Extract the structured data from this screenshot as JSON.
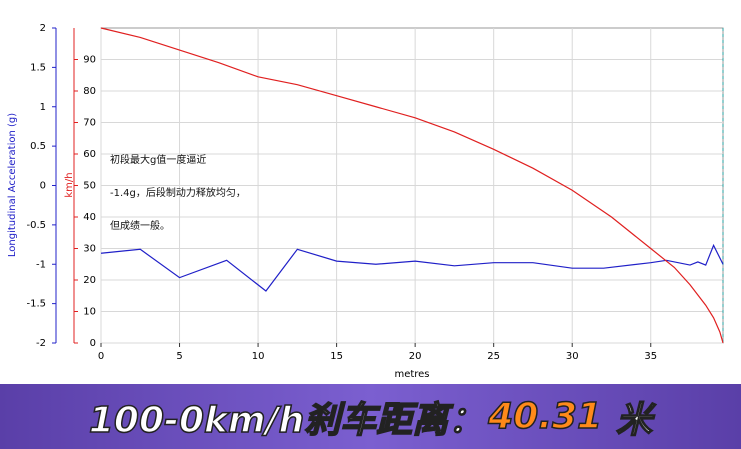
{
  "chart_data": {
    "type": "line",
    "xlabel": "metres",
    "ylabel": "Longitudinal Acceleration (g)",
    "y2label": "km/h",
    "xlim": [
      0,
      39.6
    ],
    "xticks": [
      0,
      5,
      10,
      15,
      20,
      25,
      30,
      35
    ],
    "ylim": [
      -2,
      2
    ],
    "yticks": [
      -2,
      -1.5,
      -1,
      -0.5,
      0,
      0.5,
      1,
      1.5,
      2
    ],
    "y2lim": [
      0,
      100
    ],
    "y2ticks": [
      0,
      10,
      20,
      30,
      40,
      50,
      60,
      70,
      80,
      90
    ],
    "grid": true,
    "series": [
      {
        "color": "#2020c8",
        "axis": "y",
        "x": [
          0,
          2.5,
          5,
          8,
          10.5,
          12.5,
          15,
          17.5,
          20,
          22.5,
          25,
          27.5,
          30,
          32,
          35,
          36,
          37.5,
          38,
          38.5,
          39,
          39.6
        ],
        "values": [
          -0.86,
          -0.81,
          -1.17,
          -0.95,
          -1.34,
          -0.81,
          -0.96,
          -1.0,
          -0.96,
          -1.02,
          -0.98,
          -0.98,
          -1.05,
          -1.05,
          -0.98,
          -0.95,
          -1.01,
          -0.97,
          -1.01,
          -0.76,
          -1.0
        ]
      },
      {
        "color": "#e02020",
        "axis": "y2",
        "x": [
          0,
          2.5,
          5,
          7.5,
          10,
          12.5,
          15,
          17.5,
          20,
          22.5,
          25,
          27.5,
          30,
          32.5,
          35,
          36.5,
          37.5,
          38.5,
          39,
          39.4,
          39.6
        ],
        "values": [
          100,
          97,
          93,
          89,
          84.5,
          82,
          78.5,
          75,
          71.5,
          67,
          61.5,
          55.5,
          48.5,
          40,
          30,
          24,
          18.5,
          12,
          8,
          3.5,
          0
        ]
      }
    ],
    "annotation": [
      "初段最大g值一度逼近",
      "-1.4g，后段制动力释放均匀，",
      "但成绩一般。"
    ]
  },
  "banner": {
    "prefix": "100-0km/h刹车距离：",
    "value": 40.31,
    "unit": "米"
  }
}
